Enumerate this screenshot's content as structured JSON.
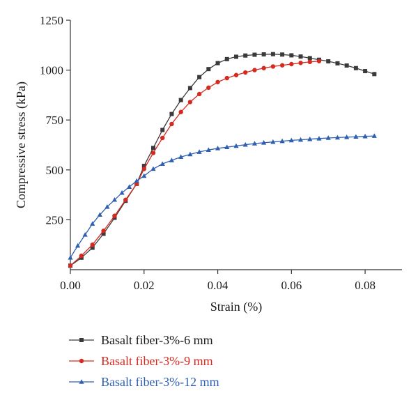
{
  "chart_data": {
    "type": "line",
    "title": "",
    "xlabel": "Strain (%)",
    "ylabel": "Compressive stress (kPa)",
    "xlim": [
      0,
      0.09
    ],
    "ylim": [
      0,
      1250
    ],
    "xticks": [
      0.0,
      0.02,
      0.04,
      0.06,
      0.08
    ],
    "xtick_labels": [
      "0.00",
      "0.02",
      "0.04",
      "0.06",
      "0.08"
    ],
    "yticks": [
      250,
      500,
      750,
      1000,
      1250
    ],
    "ytick_labels": [
      "250",
      "500",
      "750",
      "1000",
      "1250"
    ],
    "grid": false,
    "legend_position": "bottom",
    "series": [
      {
        "name": "Basalt fiber-3%-6 mm",
        "color": "#3a3a3a",
        "marker": "square",
        "x": [
          0,
          0.003,
          0.006,
          0.009,
          0.012,
          0.015,
          0.018,
          0.02,
          0.0225,
          0.025,
          0.0275,
          0.03,
          0.0325,
          0.035,
          0.0375,
          0.04,
          0.0425,
          0.045,
          0.0475,
          0.05,
          0.0525,
          0.055,
          0.0575,
          0.06,
          0.0625,
          0.065,
          0.0675,
          0.07,
          0.0725,
          0.075,
          0.0775,
          0.08,
          0.0825
        ],
        "y": [
          20,
          60,
          110,
          180,
          260,
          345,
          430,
          520,
          610,
          700,
          780,
          850,
          910,
          965,
          1005,
          1035,
          1055,
          1067,
          1073,
          1077,
          1079,
          1080,
          1078,
          1074,
          1068,
          1060,
          1052,
          1044,
          1034,
          1023,
          1010,
          995,
          980
        ]
      },
      {
        "name": "Basalt fiber-3%-9 mm",
        "color": "#d42a20",
        "marker": "circle",
        "x": [
          0,
          0.003,
          0.006,
          0.009,
          0.012,
          0.015,
          0.018,
          0.02,
          0.0225,
          0.025,
          0.0275,
          0.03,
          0.0325,
          0.035,
          0.0375,
          0.04,
          0.0425,
          0.045,
          0.0475,
          0.05,
          0.0525,
          0.055,
          0.0575,
          0.06,
          0.0625,
          0.065,
          0.0675
        ],
        "y": [
          20,
          70,
          125,
          195,
          270,
          350,
          430,
          505,
          585,
          660,
          730,
          790,
          840,
          880,
          912,
          940,
          960,
          975,
          988,
          1000,
          1010,
          1018,
          1024,
          1030,
          1036,
          1041,
          1045
        ]
      },
      {
        "name": "Basalt fiber-3%-12 mm",
        "color": "#2f5fb0",
        "marker": "triangle",
        "x": [
          0,
          0.002,
          0.004,
          0.006,
          0.008,
          0.01,
          0.012,
          0.014,
          0.016,
          0.018,
          0.02,
          0.0225,
          0.025,
          0.0275,
          0.03,
          0.0325,
          0.035,
          0.0375,
          0.04,
          0.0425,
          0.045,
          0.0475,
          0.05,
          0.0525,
          0.055,
          0.0575,
          0.06,
          0.0625,
          0.065,
          0.0675,
          0.07,
          0.0725,
          0.075,
          0.0775,
          0.08,
          0.0825
        ],
        "y": [
          60,
          120,
          175,
          230,
          275,
          315,
          350,
          385,
          415,
          445,
          470,
          505,
          530,
          548,
          565,
          578,
          590,
          600,
          608,
          614,
          620,
          626,
          632,
          636,
          640,
          644,
          648,
          651,
          654,
          657,
          660,
          662,
          664,
          666,
          668,
          670
        ]
      }
    ]
  }
}
